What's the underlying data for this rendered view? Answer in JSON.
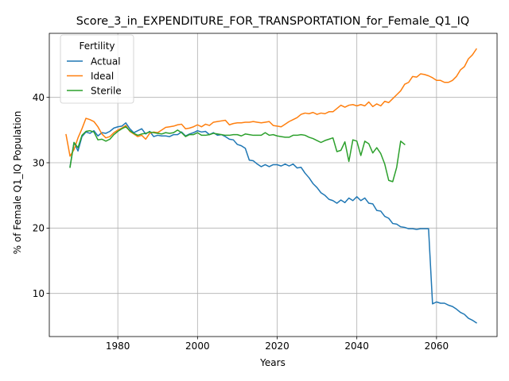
{
  "chart_data": {
    "type": "line",
    "title": "Score_3_in_EXPENDITURE_FOR_TRANSPORTATION_for_Female_Q1_IQ",
    "xlabel": "Years",
    "ylabel": "% of Female Q1_IQ Population",
    "xlim": [
      1962.8,
      2075.2
    ],
    "ylim": [
      3.4,
      49.8
    ],
    "xticks": [
      1980,
      2000,
      2020,
      2040,
      2060
    ],
    "yticks": [
      10,
      20,
      30,
      40
    ],
    "grid": true,
    "legend": {
      "title": "Fertility",
      "placement": "top-left"
    },
    "series": [
      {
        "name": "Actual",
        "color": "#1f77b4",
        "points": [
          [
            1968,
            29.4
          ],
          [
            1969,
            33.1
          ],
          [
            1970,
            31.8
          ],
          [
            1971,
            34.0
          ],
          [
            1972,
            34.7
          ],
          [
            1973,
            34.5
          ],
          [
            1974,
            34.9
          ],
          [
            1975,
            34.1
          ],
          [
            1976,
            34.6
          ],
          [
            1977,
            34.5
          ],
          [
            1978,
            34.8
          ],
          [
            1979,
            35.3
          ],
          [
            1980,
            35.5
          ],
          [
            1981,
            35.6
          ],
          [
            1982,
            36.1
          ],
          [
            1983,
            35.2
          ],
          [
            1984,
            34.6
          ],
          [
            1985,
            34.9
          ],
          [
            1986,
            35.2
          ],
          [
            1987,
            34.4
          ],
          [
            1988,
            34.8
          ],
          [
            1989,
            34.0
          ],
          [
            1990,
            34.2
          ],
          [
            1991,
            34.1
          ],
          [
            1992,
            34.1
          ],
          [
            1993,
            34.0
          ],
          [
            1994,
            34.3
          ],
          [
            1995,
            34.3
          ],
          [
            1996,
            34.7
          ],
          [
            1997,
            34.1
          ],
          [
            1998,
            34.4
          ],
          [
            1999,
            34.6
          ],
          [
            2000,
            34.9
          ],
          [
            2001,
            34.7
          ],
          [
            2002,
            34.8
          ],
          [
            2003,
            34.3
          ],
          [
            2004,
            34.6
          ],
          [
            2005,
            34.2
          ],
          [
            2006,
            34.3
          ],
          [
            2007,
            34.0
          ],
          [
            2008,
            33.6
          ],
          [
            2009,
            33.5
          ],
          [
            2010,
            32.8
          ],
          [
            2011,
            32.6
          ],
          [
            2012,
            32.2
          ],
          [
            2013,
            30.4
          ],
          [
            2014,
            30.3
          ],
          [
            2015,
            29.8
          ],
          [
            2016,
            29.4
          ],
          [
            2017,
            29.7
          ],
          [
            2018,
            29.4
          ],
          [
            2019,
            29.7
          ],
          [
            2020,
            29.7
          ],
          [
            2021,
            29.5
          ],
          [
            2022,
            29.8
          ],
          [
            2023,
            29.5
          ],
          [
            2024,
            29.8
          ],
          [
            2025,
            29.2
          ],
          [
            2026,
            29.3
          ],
          [
            2027,
            28.4
          ],
          [
            2028,
            27.7
          ],
          [
            2029,
            26.8
          ],
          [
            2030,
            26.2
          ],
          [
            2031,
            25.4
          ],
          [
            2032,
            25.0
          ],
          [
            2033,
            24.4
          ],
          [
            2034,
            24.2
          ],
          [
            2035,
            23.8
          ],
          [
            2036,
            24.3
          ],
          [
            2037,
            23.9
          ],
          [
            2038,
            24.6
          ],
          [
            2039,
            24.2
          ],
          [
            2040,
            24.8
          ],
          [
            2041,
            24.2
          ],
          [
            2042,
            24.6
          ],
          [
            2043,
            23.8
          ],
          [
            2044,
            23.7
          ],
          [
            2045,
            22.7
          ],
          [
            2046,
            22.6
          ],
          [
            2047,
            21.8
          ],
          [
            2048,
            21.5
          ],
          [
            2049,
            20.7
          ],
          [
            2050,
            20.6
          ],
          [
            2051,
            20.2
          ],
          [
            2052,
            20.1
          ],
          [
            2053,
            19.9
          ],
          [
            2054,
            19.9
          ],
          [
            2055,
            19.8
          ],
          [
            2056,
            19.9
          ],
          [
            2057,
            19.9
          ],
          [
            2058,
            19.9
          ],
          [
            2059,
            8.4
          ],
          [
            2060,
            8.7
          ],
          [
            2061,
            8.5
          ],
          [
            2062,
            8.5
          ],
          [
            2063,
            8.2
          ],
          [
            2064,
            8.0
          ],
          [
            2065,
            7.6
          ],
          [
            2066,
            7.1
          ],
          [
            2067,
            6.8
          ],
          [
            2068,
            6.2
          ],
          [
            2069,
            5.9
          ],
          [
            2070,
            5.5
          ]
        ]
      },
      {
        "name": "Ideal",
        "color": "#ff7f0e",
        "points": [
          [
            1967,
            34.3
          ],
          [
            1968,
            31.0
          ],
          [
            1969,
            32.0
          ],
          [
            1970,
            33.8
          ],
          [
            1971,
            35.2
          ],
          [
            1972,
            36.8
          ],
          [
            1973,
            36.6
          ],
          [
            1974,
            36.3
          ],
          [
            1975,
            35.5
          ],
          [
            1976,
            34.4
          ],
          [
            1977,
            33.8
          ],
          [
            1978,
            34.0
          ],
          [
            1979,
            34.6
          ],
          [
            1980,
            35.0
          ],
          [
            1981,
            35.3
          ],
          [
            1982,
            35.7
          ],
          [
            1983,
            34.8
          ],
          [
            1984,
            34.4
          ],
          [
            1985,
            34.0
          ],
          [
            1986,
            34.2
          ],
          [
            1987,
            33.6
          ],
          [
            1988,
            34.5
          ],
          [
            1989,
            34.7
          ],
          [
            1990,
            34.6
          ],
          [
            1991,
            35.0
          ],
          [
            1992,
            35.4
          ],
          [
            1993,
            35.5
          ],
          [
            1994,
            35.6
          ],
          [
            1995,
            35.8
          ],
          [
            1996,
            35.9
          ],
          [
            1997,
            35.2
          ],
          [
            1998,
            35.3
          ],
          [
            1999,
            35.5
          ],
          [
            2000,
            35.8
          ],
          [
            2001,
            35.5
          ],
          [
            2002,
            35.9
          ],
          [
            2003,
            35.7
          ],
          [
            2004,
            36.2
          ],
          [
            2005,
            36.3
          ],
          [
            2006,
            36.4
          ],
          [
            2007,
            36.5
          ],
          [
            2008,
            35.8
          ],
          [
            2009,
            36.0
          ],
          [
            2010,
            36.1
          ],
          [
            2011,
            36.1
          ],
          [
            2012,
            36.2
          ],
          [
            2013,
            36.2
          ],
          [
            2014,
            36.3
          ],
          [
            2015,
            36.2
          ],
          [
            2016,
            36.1
          ],
          [
            2017,
            36.2
          ],
          [
            2018,
            36.3
          ],
          [
            2019,
            35.7
          ],
          [
            2020,
            35.6
          ],
          [
            2021,
            35.5
          ],
          [
            2022,
            35.9
          ],
          [
            2023,
            36.3
          ],
          [
            2024,
            36.6
          ],
          [
            2025,
            36.9
          ],
          [
            2026,
            37.4
          ],
          [
            2027,
            37.6
          ],
          [
            2028,
            37.5
          ],
          [
            2029,
            37.7
          ],
          [
            2030,
            37.4
          ],
          [
            2031,
            37.6
          ],
          [
            2032,
            37.5
          ],
          [
            2033,
            37.8
          ],
          [
            2034,
            37.8
          ],
          [
            2035,
            38.3
          ],
          [
            2036,
            38.8
          ],
          [
            2037,
            38.5
          ],
          [
            2038,
            38.8
          ],
          [
            2039,
            38.9
          ],
          [
            2040,
            38.7
          ],
          [
            2041,
            38.9
          ],
          [
            2042,
            38.7
          ],
          [
            2043,
            39.3
          ],
          [
            2044,
            38.6
          ],
          [
            2045,
            39.0
          ],
          [
            2046,
            38.7
          ],
          [
            2047,
            39.4
          ],
          [
            2048,
            39.2
          ],
          [
            2049,
            39.8
          ],
          [
            2050,
            40.4
          ],
          [
            2051,
            41.0
          ],
          [
            2052,
            42.0
          ],
          [
            2053,
            42.3
          ],
          [
            2054,
            43.2
          ],
          [
            2055,
            43.1
          ],
          [
            2056,
            43.6
          ],
          [
            2057,
            43.5
          ],
          [
            2058,
            43.3
          ],
          [
            2059,
            43.0
          ],
          [
            2060,
            42.6
          ],
          [
            2061,
            42.6
          ],
          [
            2062,
            42.3
          ],
          [
            2063,
            42.3
          ],
          [
            2064,
            42.6
          ],
          [
            2065,
            43.2
          ],
          [
            2066,
            44.2
          ],
          [
            2067,
            44.7
          ],
          [
            2068,
            45.9
          ],
          [
            2069,
            46.5
          ],
          [
            2070,
            47.4
          ]
        ]
      },
      {
        "name": "Sterile",
        "color": "#2ca02c",
        "points": [
          [
            1968,
            29.3
          ],
          [
            1969,
            33.1
          ],
          [
            1970,
            32.3
          ],
          [
            1971,
            34.2
          ],
          [
            1972,
            34.8
          ],
          [
            1973,
            34.9
          ],
          [
            1974,
            34.7
          ],
          [
            1975,
            33.5
          ],
          [
            1976,
            33.6
          ],
          [
            1977,
            33.3
          ],
          [
            1978,
            33.6
          ],
          [
            1979,
            34.3
          ],
          [
            1980,
            34.8
          ],
          [
            1981,
            35.2
          ],
          [
            1982,
            35.5
          ],
          [
            1983,
            34.9
          ],
          [
            1984,
            34.5
          ],
          [
            1985,
            34.2
          ],
          [
            1986,
            34.4
          ],
          [
            1987,
            34.5
          ],
          [
            1988,
            34.7
          ],
          [
            1989,
            34.6
          ],
          [
            1990,
            34.5
          ],
          [
            1991,
            34.4
          ],
          [
            1992,
            34.6
          ],
          [
            1993,
            34.5
          ],
          [
            1994,
            34.6
          ],
          [
            1995,
            35.0
          ],
          [
            1996,
            34.6
          ],
          [
            1997,
            34.0
          ],
          [
            1998,
            34.3
          ],
          [
            1999,
            34.3
          ],
          [
            2000,
            34.6
          ],
          [
            2001,
            34.2
          ],
          [
            2002,
            34.2
          ],
          [
            2003,
            34.3
          ],
          [
            2004,
            34.5
          ],
          [
            2005,
            34.4
          ],
          [
            2006,
            34.3
          ],
          [
            2007,
            34.2
          ],
          [
            2008,
            34.2
          ],
          [
            2009,
            34.3
          ],
          [
            2010,
            34.3
          ],
          [
            2011,
            34.1
          ],
          [
            2012,
            34.4
          ],
          [
            2013,
            34.3
          ],
          [
            2014,
            34.2
          ],
          [
            2015,
            34.2
          ],
          [
            2016,
            34.2
          ],
          [
            2017,
            34.6
          ],
          [
            2018,
            34.2
          ],
          [
            2019,
            34.3
          ],
          [
            2020,
            34.1
          ],
          [
            2021,
            34.0
          ],
          [
            2022,
            33.9
          ],
          [
            2023,
            33.9
          ],
          [
            2024,
            34.2
          ],
          [
            2025,
            34.2
          ],
          [
            2026,
            34.3
          ],
          [
            2027,
            34.2
          ],
          [
            2028,
            33.9
          ],
          [
            2029,
            33.7
          ],
          [
            2030,
            33.4
          ],
          [
            2031,
            33.1
          ],
          [
            2032,
            33.4
          ],
          [
            2033,
            33.6
          ],
          [
            2034,
            33.8
          ],
          [
            2035,
            31.7
          ],
          [
            2036,
            31.9
          ],
          [
            2037,
            33.2
          ],
          [
            2038,
            30.2
          ],
          [
            2039,
            33.5
          ],
          [
            2040,
            33.3
          ],
          [
            2041,
            31.1
          ],
          [
            2042,
            33.3
          ],
          [
            2043,
            32.9
          ],
          [
            2044,
            31.5
          ],
          [
            2045,
            32.3
          ],
          [
            2046,
            31.4
          ],
          [
            2047,
            29.8
          ],
          [
            2048,
            27.3
          ],
          [
            2049,
            27.1
          ],
          [
            2050,
            29.3
          ],
          [
            2051,
            33.3
          ],
          [
            2052,
            32.8
          ]
        ]
      }
    ]
  }
}
